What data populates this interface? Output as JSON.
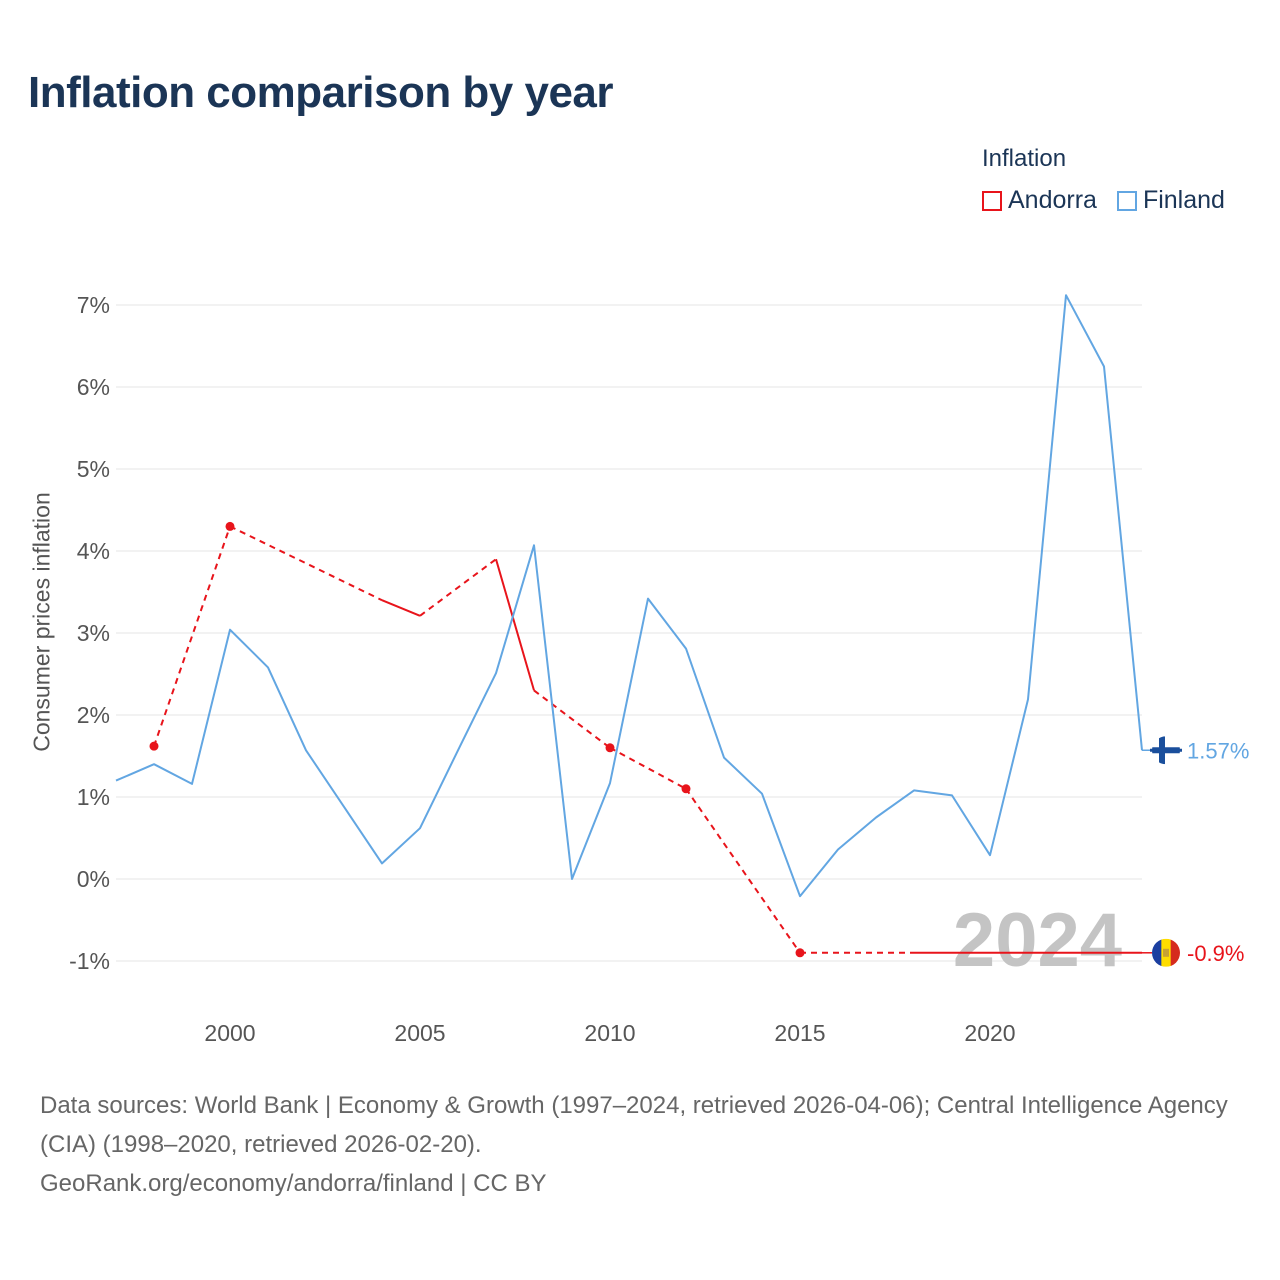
{
  "title": "Inflation comparison by year",
  "legend": {
    "title": "Inflation",
    "items": [
      {
        "label": "Andorra",
        "color": "#e8141b"
      },
      {
        "label": "Finland",
        "color": "#62a6e2"
      }
    ]
  },
  "chart_data": {
    "type": "line",
    "title": "Inflation comparison by year",
    "xlabel": "",
    "ylabel": "Consumer prices inflation",
    "xlim": [
      1997,
      2024
    ],
    "ylim": [
      -1.5,
      7.5
    ],
    "x_ticks": [
      2000,
      2005,
      2010,
      2015,
      2020
    ],
    "y_ticks": [
      -1,
      0,
      1,
      2,
      3,
      4,
      5,
      6,
      7
    ],
    "y_tick_labels": [
      "-1%",
      "0%",
      "1%",
      "2%",
      "3%",
      "4%",
      "5%",
      "6%",
      "7%"
    ],
    "grid": true,
    "legend_position": "top-right",
    "watermark_year": "2024",
    "series": [
      {
        "name": "Andorra",
        "color": "#e8141b",
        "end_label": "-0.9%",
        "end_icon": "andorra-flag-icon",
        "values": [
          {
            "x": 1998,
            "y": 1.62
          },
          {
            "x": 2000,
            "y": 4.3
          },
          {
            "x": 2004,
            "y": 3.4
          },
          {
            "x": 2005,
            "y": 3.21
          },
          {
            "x": 2007,
            "y": 3.9
          },
          {
            "x": 2008,
            "y": 2.3
          },
          {
            "x": 2010,
            "y": 1.6
          },
          {
            "x": 2012,
            "y": 1.1
          },
          {
            "x": 2015,
            "y": -0.9
          },
          {
            "x": 2018,
            "y": -0.9
          },
          {
            "x": 2020,
            "y": -0.9
          },
          {
            "x": 2024,
            "y": -0.9
          }
        ],
        "dashed_segments": [
          [
            1998,
            2000
          ],
          [
            2000,
            2004
          ],
          [
            2005,
            2007
          ],
          [
            2008,
            2010
          ],
          [
            2010,
            2012
          ],
          [
            2012,
            2015
          ],
          [
            2015,
            2018
          ]
        ],
        "solid_segments": [
          [
            2004,
            2005
          ],
          [
            2007,
            2008
          ],
          [
            2018,
            2024
          ]
        ],
        "markers": [
          1998,
          2000,
          2010,
          2012,
          2015
        ]
      },
      {
        "name": "Finland",
        "color": "#62a6e2",
        "end_label": "1.57%",
        "end_icon": "finland-flag-icon",
        "values": [
          {
            "x": 1997,
            "y": 1.2
          },
          {
            "x": 1998,
            "y": 1.4
          },
          {
            "x": 1999,
            "y": 1.16
          },
          {
            "x": 2000,
            "y": 3.04
          },
          {
            "x": 2001,
            "y": 2.58
          },
          {
            "x": 2002,
            "y": 1.57
          },
          {
            "x": 2003,
            "y": 0.88
          },
          {
            "x": 2004,
            "y": 0.19
          },
          {
            "x": 2005,
            "y": 0.62
          },
          {
            "x": 2006,
            "y": 1.57
          },
          {
            "x": 2007,
            "y": 2.51
          },
          {
            "x": 2008,
            "y": 4.07
          },
          {
            "x": 2009,
            "y": 0.0
          },
          {
            "x": 2010,
            "y": 1.17
          },
          {
            "x": 2011,
            "y": 3.42
          },
          {
            "x": 2012,
            "y": 2.81
          },
          {
            "x": 2013,
            "y": 1.48
          },
          {
            "x": 2014,
            "y": 1.04
          },
          {
            "x": 2015,
            "y": -0.21
          },
          {
            "x": 2016,
            "y": 0.36
          },
          {
            "x": 2017,
            "y": 0.75
          },
          {
            "x": 2018,
            "y": 1.08
          },
          {
            "x": 2019,
            "y": 1.02
          },
          {
            "x": 2020,
            "y": 0.29
          },
          {
            "x": 2021,
            "y": 2.19
          },
          {
            "x": 2022,
            "y": 7.12
          },
          {
            "x": 2023,
            "y": 6.25
          },
          {
            "x": 2024,
            "y": 1.57
          }
        ]
      }
    ]
  },
  "footer": {
    "line1": "Data sources: World Bank | Economy & Growth (1997–2024, retrieved 2026-04-06); Central Intelligence Agency (CIA) (1998–2020, retrieved 2026-02-20).",
    "line2": "GeoRank.org/economy/andorra/finland | CC BY"
  }
}
